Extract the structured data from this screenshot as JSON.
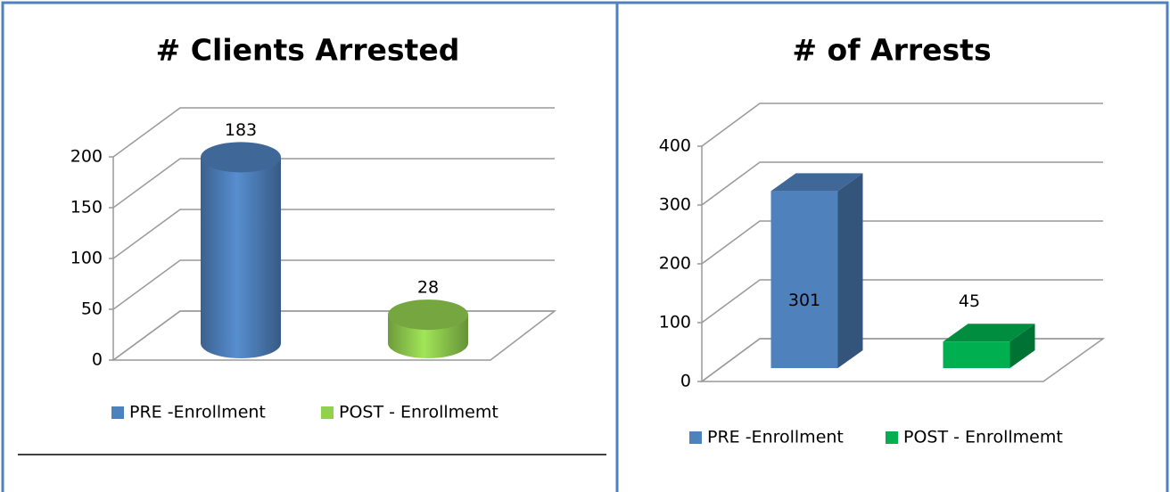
{
  "chart_data": [
    {
      "type": "bar",
      "title": "# Clients Arrested",
      "series": [
        {
          "name": "PRE -Enrollment",
          "color": "#4f81bd",
          "values": [
            183
          ]
        },
        {
          "name": "POST - Enrollmemt",
          "color": "#92d050",
          "values": [
            28
          ]
        }
      ],
      "ylim": [
        0,
        200
      ],
      "yticks": [
        0,
        50,
        100,
        150,
        200
      ],
      "grid": true,
      "legend": "bottom"
    },
    {
      "type": "bar",
      "title": "# of Arrests",
      "series": [
        {
          "name": "PRE -Enrollment",
          "color": "#4f81bd",
          "values": [
            301
          ]
        },
        {
          "name": "POST - Enrollmemt",
          "color": "#00b050",
          "values": [
            45
          ]
        }
      ],
      "ylim": [
        0,
        400
      ],
      "yticks": [
        0,
        100,
        200,
        300,
        400
      ],
      "grid": true,
      "legend": "bottom"
    }
  ]
}
